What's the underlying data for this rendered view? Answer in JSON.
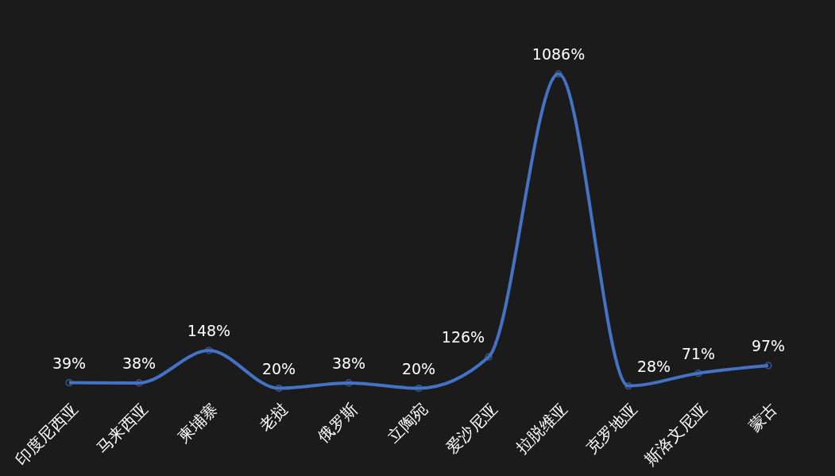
{
  "chart_data": {
    "type": "line",
    "categories": [
      "印度尼西亚",
      "马来西亚",
      "柬埔寨",
      "老挝",
      "俄罗斯",
      "立陶宛",
      "爱沙尼亚",
      "拉脱维亚",
      "克罗地亚",
      "斯洛文尼亚",
      "蒙古"
    ],
    "series": [
      {
        "color": "#4472c4",
        "values": [
          39,
          38,
          148,
          20,
          38,
          20,
          126,
          1086,
          28,
          71,
          97
        ],
        "value_labels": [
          "39%",
          "38%",
          "148%",
          "20%",
          "38%",
          "20%",
          "126%",
          "1086%",
          "28%",
          "71%",
          "97%"
        ]
      }
    ],
    "marker": "circle",
    "line_style": "solid",
    "grid": false
  }
}
